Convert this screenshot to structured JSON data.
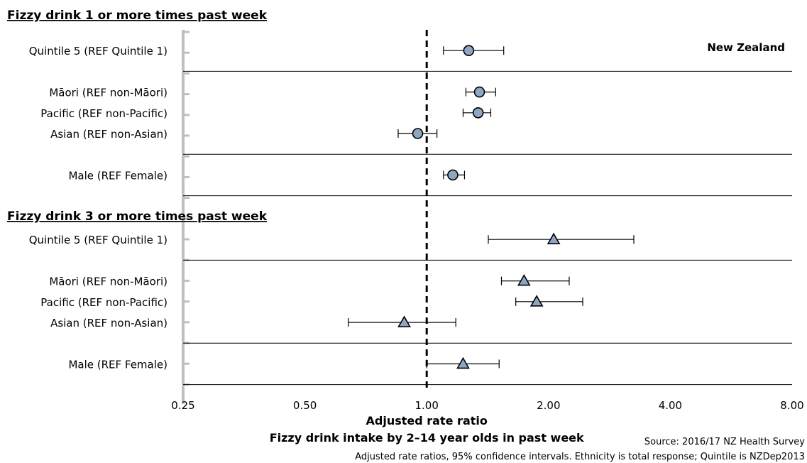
{
  "chart_data": {
    "type": "forest",
    "title": "Fizzy drink intake by 2–14 year olds in past week",
    "region": "New Zealand",
    "xlabel": "Adjusted rate ratio",
    "x_scale": "log2",
    "xlim": [
      0.25,
      8.0
    ],
    "x_ticks": [
      "0.25",
      "0.50",
      "1.00",
      "2.00",
      "4.00",
      "8.00"
    ],
    "x_tick_values": [
      0.25,
      0.5,
      1.0,
      2.0,
      4.0,
      8.0
    ],
    "reference_line": 1.0,
    "source": "Source: 2016/17 NZ Health Survey",
    "note": "Adjusted rate ratios, 95% confidence intervals. Ethnicity is total response; Quintile is NZDep2013",
    "colors": {
      "marker_fill": "#8ea6c1",
      "marker_stroke": "#000000",
      "line": "#000000"
    },
    "sections": [
      {
        "title": "Fizzy drink 1 or more times past week",
        "marker": "circle",
        "groups": [
          [
            {
              "label": "Quintile 5 (REF Quintile 1)",
              "estimate": 1.27,
              "lower": 1.1,
              "upper": 1.55
            }
          ],
          [
            {
              "label": "Māori (REF non-Māori)",
              "estimate": 1.35,
              "lower": 1.25,
              "upper": 1.48
            },
            {
              "label": "Pacific (REF non-Pacific)",
              "estimate": 1.34,
              "lower": 1.23,
              "upper": 1.44
            },
            {
              "label": "Asian (REF non-Asian)",
              "estimate": 0.95,
              "lower": 0.85,
              "upper": 1.06
            }
          ],
          [
            {
              "label": "Male (REF Female)",
              "estimate": 1.16,
              "lower": 1.1,
              "upper": 1.24
            }
          ]
        ]
      },
      {
        "title": "Fizzy drink 3 or more times past week",
        "marker": "triangle",
        "groups": [
          [
            {
              "label": "Quintile 5 (REF Quintile 1)",
              "estimate": 2.06,
              "lower": 1.42,
              "upper": 3.25
            }
          ],
          [
            {
              "label": "Māori (REF non-Māori)",
              "estimate": 1.74,
              "lower": 1.53,
              "upper": 2.25
            },
            {
              "label": "Pacific (REF non-Pacific)",
              "estimate": 1.87,
              "lower": 1.66,
              "upper": 2.43
            },
            {
              "label": "Asian (REF non-Asian)",
              "estimate": 0.88,
              "lower": 0.64,
              "upper": 1.18
            }
          ],
          [
            {
              "label": "Male (REF Female)",
              "estimate": 1.23,
              "lower": 1.0,
              "upper": 1.51
            }
          ]
        ]
      }
    ]
  }
}
